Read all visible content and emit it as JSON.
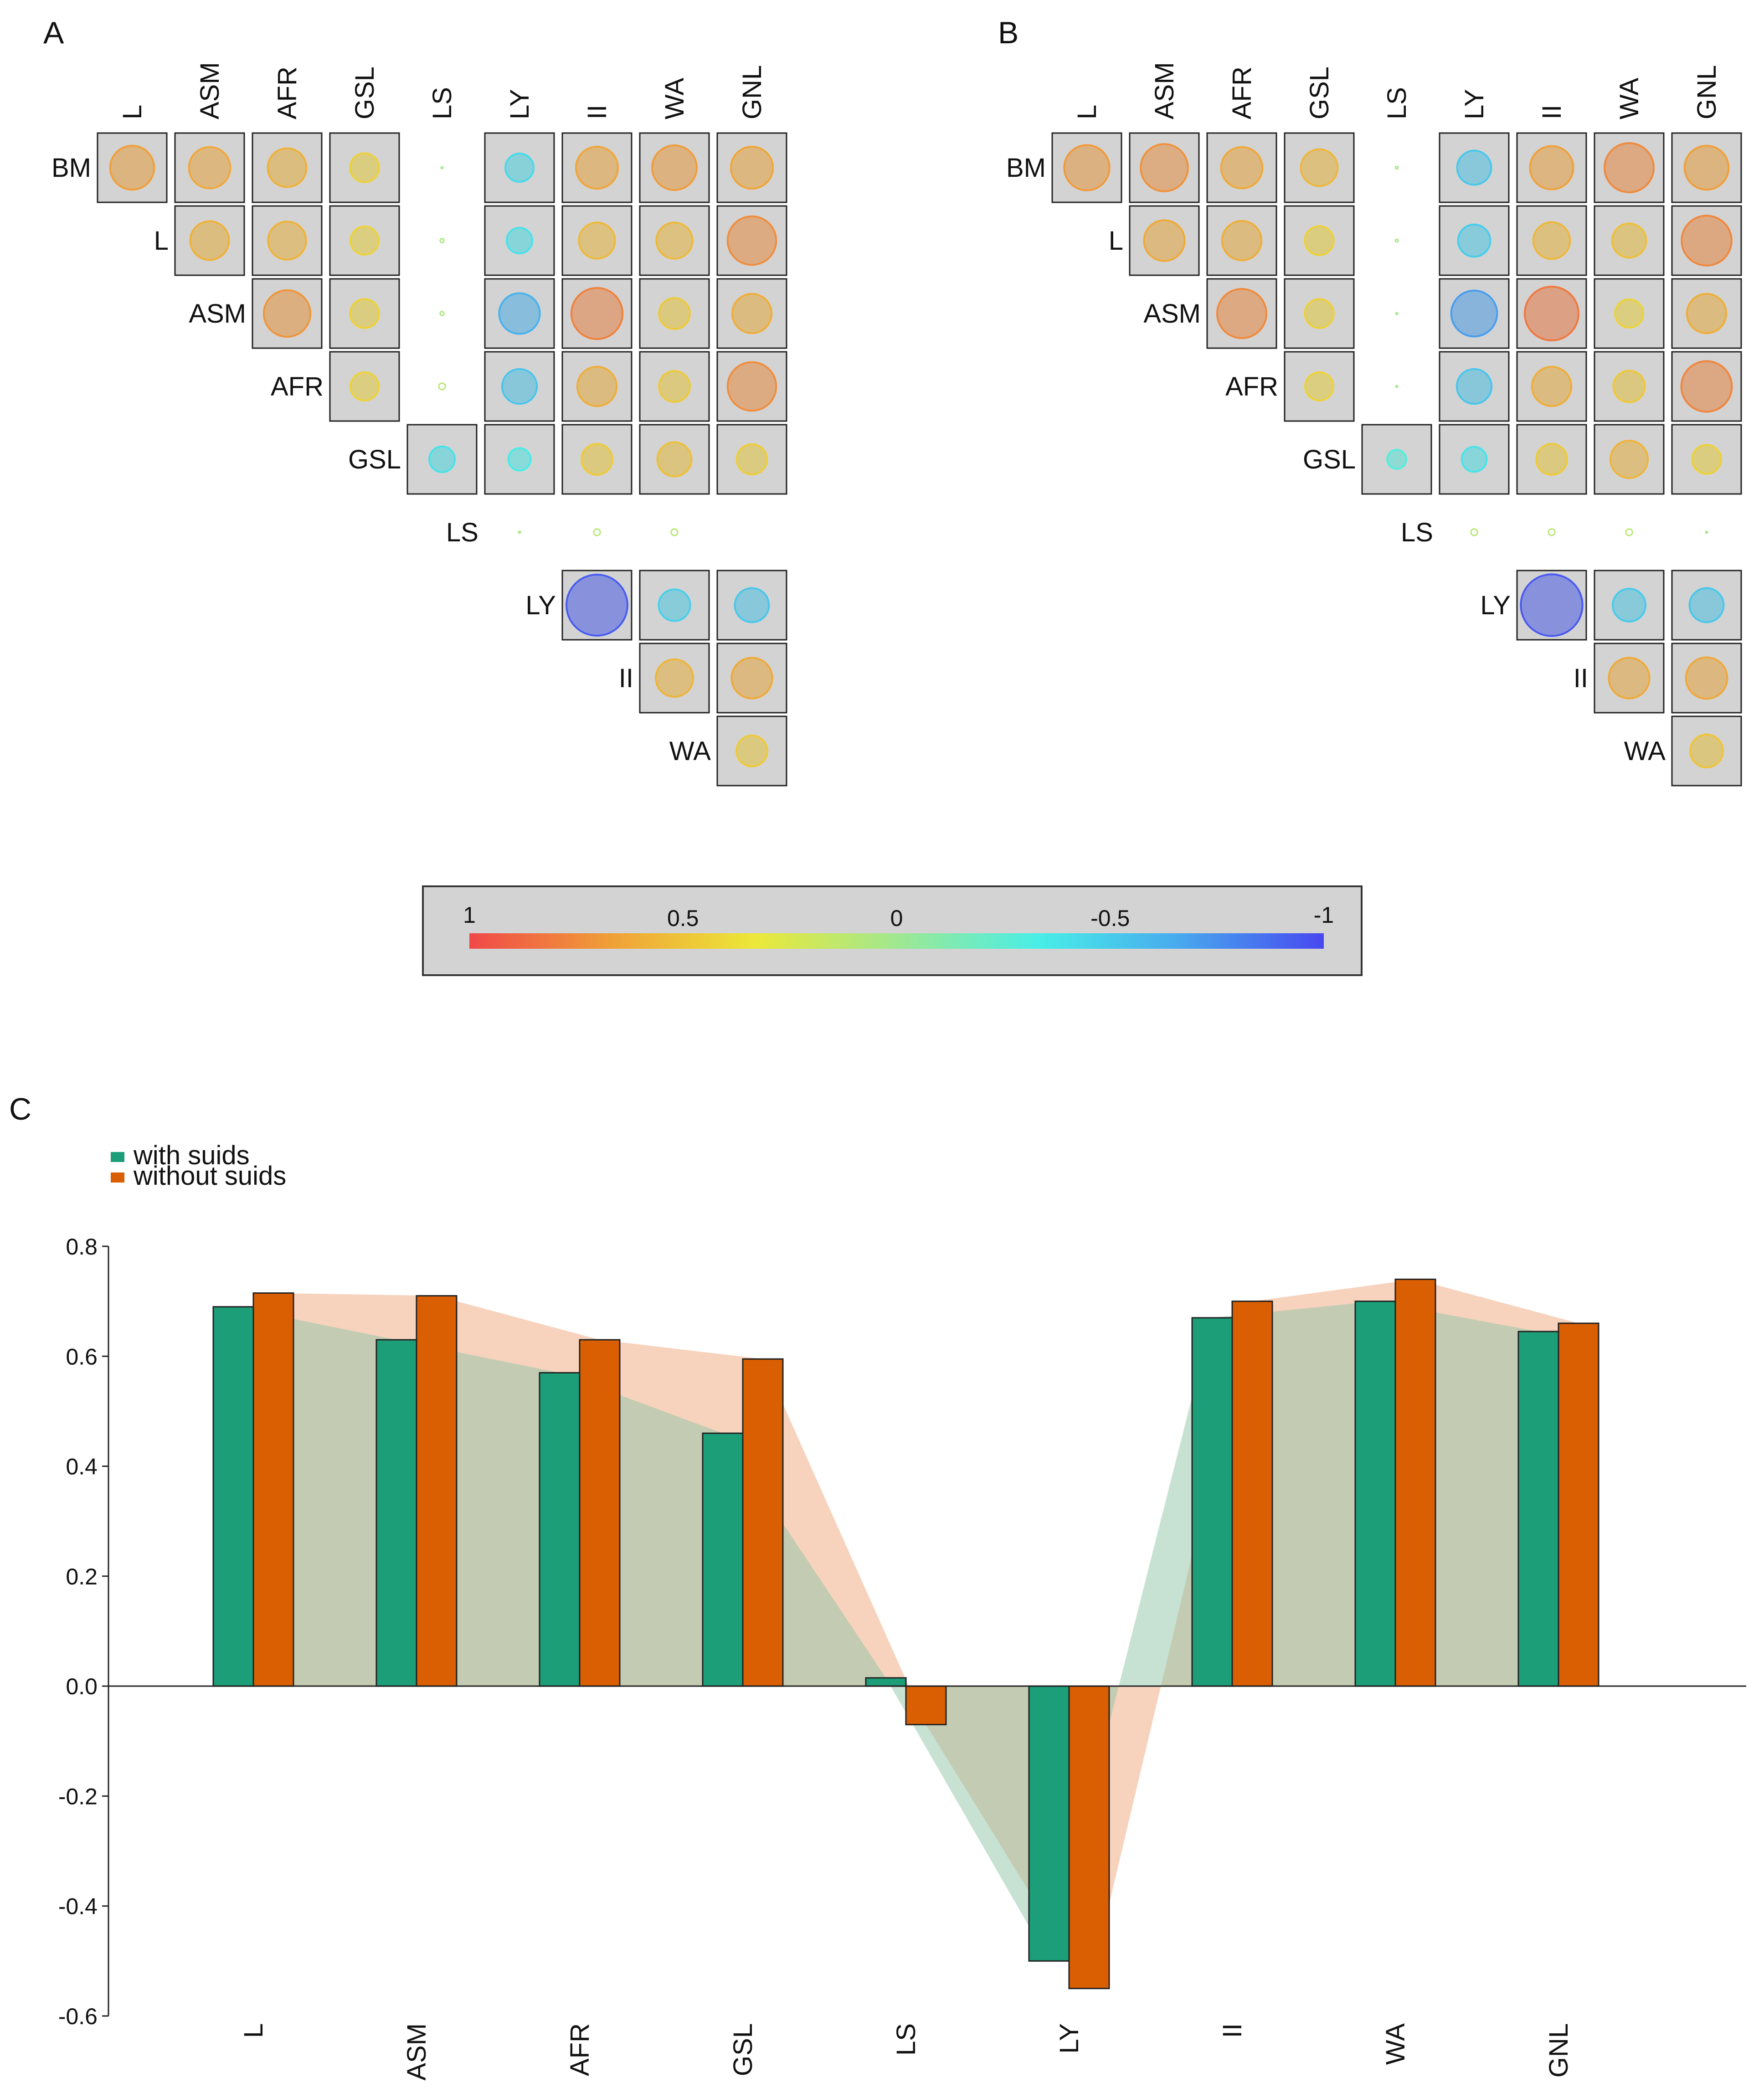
{
  "panels": {
    "a": "A",
    "b": "B",
    "c": "C"
  },
  "variables": [
    "BM",
    "L",
    "ASM",
    "AFR",
    "GSL",
    "LS",
    "LY",
    "II",
    "WA",
    "GNL"
  ],
  "colorbar": {
    "tick_labels": [
      "1",
      "0.5",
      "0",
      "-0.5",
      "-1"
    ],
    "tick_values": [
      1,
      0.5,
      0,
      -0.5,
      -1
    ],
    "colors": [
      "#f04848",
      "#f0a038",
      "#ece838",
      "#a0e890",
      "#48eee8",
      "#48a8ee",
      "#4848f0"
    ]
  },
  "matrices": [
    {
      "panel": "A",
      "cells": [
        [
          0.67,
          0.63,
          0.59,
          0.44,
          0.02,
          -0.43,
          0.64,
          0.68,
          0.64
        ],
        [
          null,
          0.59,
          0.58,
          0.43,
          0.06,
          -0.39,
          0.55,
          0.55,
          0.74
        ],
        [
          null,
          null,
          0.71,
          0.44,
          0.06,
          -0.62,
          0.78,
          0.47,
          0.6
        ],
        [
          null,
          null,
          null,
          0.43,
          0.1,
          -0.53,
          0.6,
          0.47,
          0.74
        ],
        [
          null,
          null,
          null,
          null,
          -0.39,
          -0.34,
          0.47,
          0.52,
          0.46
        ],
        [
          null,
          null,
          null,
          null,
          null,
          0.03,
          0.1,
          0.1,
          null
        ],
        [
          null,
          null,
          null,
          null,
          null,
          null,
          -0.93,
          -0.48,
          -0.52
        ],
        [
          null,
          null,
          null,
          null,
          null,
          null,
          null,
          0.57,
          0.62
        ],
        [
          null,
          null,
          null,
          null,
          null,
          null,
          null,
          null,
          0.47
        ]
      ]
    },
    {
      "panel": "B",
      "cells": [
        [
          0.69,
          0.72,
          0.63,
          0.56,
          0.04,
          -0.52,
          0.66,
          0.75,
          0.67
        ],
        [
          null,
          0.62,
          0.6,
          0.44,
          0.04,
          -0.49,
          0.56,
          0.52,
          0.76
        ],
        [
          null,
          null,
          0.75,
          0.44,
          0.02,
          -0.7,
          0.82,
          0.43,
          0.6
        ],
        [
          null,
          null,
          null,
          0.43,
          0.02,
          -0.53,
          0.6,
          0.48,
          0.77
        ],
        [
          null,
          null,
          null,
          null,
          -0.29,
          -0.38,
          0.47,
          0.57,
          0.44
        ],
        [
          null,
          null,
          null,
          null,
          null,
          0.1,
          0.1,
          0.1,
          0.02
        ],
        [
          null,
          null,
          null,
          null,
          null,
          null,
          -0.94,
          -0.5,
          -0.52
        ],
        [
          null,
          null,
          null,
          null,
          null,
          null,
          null,
          0.62,
          0.63
        ],
        [
          null,
          null,
          null,
          null,
          null,
          null,
          null,
          null,
          0.5
        ]
      ]
    }
  ],
  "chart_data": {
    "type": "bar",
    "title": "",
    "xlabel": "",
    "ylabel": "",
    "categories": [
      "L",
      "ASM",
      "AFR",
      "GSL",
      "LS",
      "LY",
      "II",
      "WA",
      "GNL"
    ],
    "series": [
      {
        "name": "with suids",
        "color": "#1c9e78",
        "values": [
          0.69,
          0.63,
          0.57,
          0.46,
          0.015,
          -0.5,
          0.67,
          0.7,
          0.645
        ]
      },
      {
        "name": "without suids",
        "color": "#d95f02",
        "values": [
          0.715,
          0.71,
          0.63,
          0.595,
          -0.07,
          -0.55,
          0.7,
          0.74,
          0.66
        ]
      }
    ],
    "ylim": [
      -0.6,
      0.8
    ],
    "yticks": [
      0.8,
      0.6,
      0.4,
      0.2,
      0.0,
      -0.2,
      -0.4,
      -0.6
    ],
    "ytick_labels": [
      "0.8",
      "0.6",
      "0.4",
      "0.2",
      "0.0",
      "-0.2",
      "-0.4",
      "-0.6"
    ],
    "grid": false,
    "legend": "top-left"
  }
}
